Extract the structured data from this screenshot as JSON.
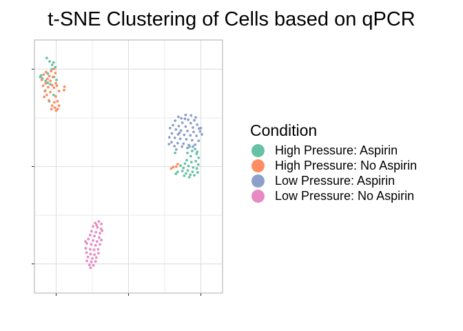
{
  "chart_data": {
    "type": "scatter",
    "title": "t-SNE Clustering of Cells based on qPCR",
    "xlabel": "",
    "ylabel": "",
    "xlim": [
      -26,
      26
    ],
    "ylim": [
      -26,
      26
    ],
    "x_gridlines": [
      -20,
      -10,
      0,
      10,
      20
    ],
    "y_gridlines": [
      -20,
      -10,
      0,
      10,
      20
    ],
    "x_major_ticks": [
      -20,
      0,
      20
    ],
    "y_major_ticks": [
      -20,
      0,
      20
    ],
    "grid": true,
    "legend": {
      "title": "Condition",
      "position": "right"
    },
    "series": [
      {
        "name": "High Pressure: Aspirin",
        "color": "#66C2A5",
        "points": [
          [
            -22.6,
            22.3
          ],
          [
            -21.8,
            21.6
          ],
          [
            -20.7,
            21.4
          ],
          [
            -21.1,
            20.9
          ],
          [
            -20.2,
            20.4
          ],
          [
            -24.2,
            18.7
          ],
          [
            -23.8,
            18.1
          ],
          [
            -24.4,
            18.4
          ],
          [
            -22.9,
            17.6
          ],
          [
            -20.6,
            18.4
          ],
          [
            -22.3,
            17.2
          ],
          [
            -21.6,
            16.9
          ],
          [
            -23.1,
            15.5
          ],
          [
            -21.9,
            13.4
          ],
          [
            -20.7,
            14.7
          ],
          [
            -22.3,
            19.1
          ],
          [
            -19.9,
            17.8
          ],
          [
            -21.2,
            20.0
          ],
          [
            16.9,
            4.1
          ],
          [
            17.6,
            3.2
          ],
          [
            18.4,
            3.6
          ],
          [
            16.3,
            2.8
          ],
          [
            17.2,
            2.1
          ],
          [
            18.8,
            2.6
          ],
          [
            19.4,
            1.8
          ],
          [
            16.1,
            1.3
          ],
          [
            17.4,
            0.9
          ],
          [
            18.6,
            1.1
          ],
          [
            19.3,
            0.4
          ],
          [
            15.6,
            0.6
          ],
          [
            16.6,
            0.1
          ],
          [
            17.9,
            -0.2
          ],
          [
            18.9,
            -0.4
          ],
          [
            15.2,
            -0.3
          ],
          [
            16.4,
            -0.8
          ],
          [
            17.7,
            -1.1
          ],
          [
            19.1,
            -1.2
          ],
          [
            14.9,
            -0.9
          ],
          [
            15.9,
            -1.4
          ],
          [
            17.1,
            -1.7
          ],
          [
            18.2,
            -1.8
          ],
          [
            15.4,
            -1.9
          ],
          [
            16.8,
            -2.2
          ],
          [
            14.4,
            0.2
          ],
          [
            13.6,
            -1.1
          ],
          [
            12.9,
            2.8
          ],
          [
            19.0,
            3.0
          ],
          [
            13.1,
            -1.5
          ]
        ]
      },
      {
        "name": "High Pressure: No Aspirin",
        "color": "#FC8D62",
        "points": [
          [
            -21.4,
            19.6
          ],
          [
            -22.8,
            19.4
          ],
          [
            -20.2,
            19.2
          ],
          [
            -21.9,
            18.6
          ],
          [
            -23.5,
            18.9
          ],
          [
            -20.9,
            18.4
          ],
          [
            -22.4,
            18.0
          ],
          [
            -24.0,
            17.8
          ],
          [
            -21.6,
            17.6
          ],
          [
            -20.1,
            17.1
          ],
          [
            -22.9,
            17.1
          ],
          [
            -23.6,
            16.6
          ],
          [
            -21.1,
            16.7
          ],
          [
            -22.2,
            16.3
          ],
          [
            -20.6,
            16.2
          ],
          [
            -23.0,
            15.6
          ],
          [
            -21.6,
            15.3
          ],
          [
            -22.6,
            14.7
          ],
          [
            -23.3,
            14.3
          ],
          [
            -20.1,
            14.4
          ],
          [
            -19.6,
            13.4
          ],
          [
            -20.5,
            13.2
          ],
          [
            -19.2,
            12.5
          ],
          [
            -21.1,
            12.5
          ],
          [
            -20.4,
            12.1
          ],
          [
            -19.6,
            11.8
          ],
          [
            -21.3,
            11.8
          ],
          [
            -20.0,
            11.5
          ],
          [
            -17.7,
            16.4
          ],
          [
            -17.8,
            15.7
          ],
          [
            -19.2,
            15.5
          ],
          [
            -22.0,
            13.6
          ],
          [
            -19.8,
            16.6
          ],
          [
            -20.6,
            20.1
          ],
          [
            12.4,
            -0.1
          ],
          [
            13.2,
            0.0
          ],
          [
            11.8,
            -0.4
          ],
          [
            13.6,
            0.5
          ]
        ]
      },
      {
        "name": "Low Pressure: Aspirin",
        "color": "#8DA0CB",
        "points": [
          [
            14.6,
            9.9
          ],
          [
            15.8,
            10.6
          ],
          [
            17.3,
            10.5
          ],
          [
            13.8,
            10.2
          ],
          [
            16.5,
            9.6
          ],
          [
            18.2,
            9.5
          ],
          [
            12.9,
            9.4
          ],
          [
            14.9,
            9.0
          ],
          [
            17.2,
            8.9
          ],
          [
            19.0,
            8.6
          ],
          [
            12.3,
            8.5
          ],
          [
            13.9,
            8.3
          ],
          [
            15.8,
            8.2
          ],
          [
            17.8,
            8.0
          ],
          [
            19.5,
            7.8
          ],
          [
            11.5,
            7.9
          ],
          [
            13.1,
            7.6
          ],
          [
            14.5,
            7.4
          ],
          [
            16.3,
            7.3
          ],
          [
            18.0,
            7.1
          ],
          [
            19.8,
            7.2
          ],
          [
            12.0,
            6.8
          ],
          [
            13.7,
            6.6
          ],
          [
            15.4,
            6.5
          ],
          [
            17.1,
            6.4
          ],
          [
            18.8,
            6.3
          ],
          [
            20.3,
            6.6
          ],
          [
            11.3,
            6.0
          ],
          [
            12.8,
            5.9
          ],
          [
            14.3,
            5.7
          ],
          [
            16.0,
            5.6
          ],
          [
            17.6,
            5.4
          ],
          [
            19.4,
            5.3
          ],
          [
            11.9,
            5.0
          ],
          [
            13.6,
            4.8
          ],
          [
            15.2,
            4.7
          ],
          [
            16.7,
            4.4
          ],
          [
            18.4,
            4.5
          ],
          [
            12.7,
            4.2
          ],
          [
            14.8,
            4.1
          ],
          [
            16.3,
            3.8
          ],
          [
            11.2,
            4.6
          ],
          [
            17.8,
            4.1
          ],
          [
            13.2,
            3.5
          ],
          [
            15.6,
            9.8
          ],
          [
            18.6,
            10.1
          ],
          [
            20.0,
            7.9
          ],
          [
            14.1,
            6.9
          ]
        ]
      },
      {
        "name": "Low Pressure: No Aspirin",
        "color": "#E78AC3",
        "points": [
          [
            -9.2,
            -11.6
          ],
          [
            -8.2,
            -11.3
          ],
          [
            -7.5,
            -11.8
          ],
          [
            -9.8,
            -12.3
          ],
          [
            -8.6,
            -12.5
          ],
          [
            -7.6,
            -12.8
          ],
          [
            -10.2,
            -13.3
          ],
          [
            -9.0,
            -13.5
          ],
          [
            -7.9,
            -13.7
          ],
          [
            -10.6,
            -14.1
          ],
          [
            -9.4,
            -14.3
          ],
          [
            -8.1,
            -14.6
          ],
          [
            -11.1,
            -14.9
          ],
          [
            -9.8,
            -15.2
          ],
          [
            -8.7,
            -15.4
          ],
          [
            -7.5,
            -15.1
          ],
          [
            -11.5,
            -15.8
          ],
          [
            -10.3,
            -16.0
          ],
          [
            -9.1,
            -16.2
          ],
          [
            -7.9,
            -16.0
          ],
          [
            -11.8,
            -16.8
          ],
          [
            -10.6,
            -17.0
          ],
          [
            -9.5,
            -17.1
          ],
          [
            -8.4,
            -17.0
          ],
          [
            -11.6,
            -17.7
          ],
          [
            -10.5,
            -18.0
          ],
          [
            -9.4,
            -18.1
          ],
          [
            -8.3,
            -17.8
          ],
          [
            -11.2,
            -18.6
          ],
          [
            -10.0,
            -18.9
          ],
          [
            -8.9,
            -18.7
          ],
          [
            -11.5,
            -19.4
          ],
          [
            -10.3,
            -19.6
          ],
          [
            -9.1,
            -19.5
          ],
          [
            -10.8,
            -20.2
          ],
          [
            -9.7,
            -20.3
          ],
          [
            -10.5,
            -20.8
          ],
          [
            -11.9,
            -15.4
          ],
          [
            -7.3,
            -13.2
          ],
          [
            -8.8,
            -12.0
          ]
        ]
      }
    ]
  }
}
